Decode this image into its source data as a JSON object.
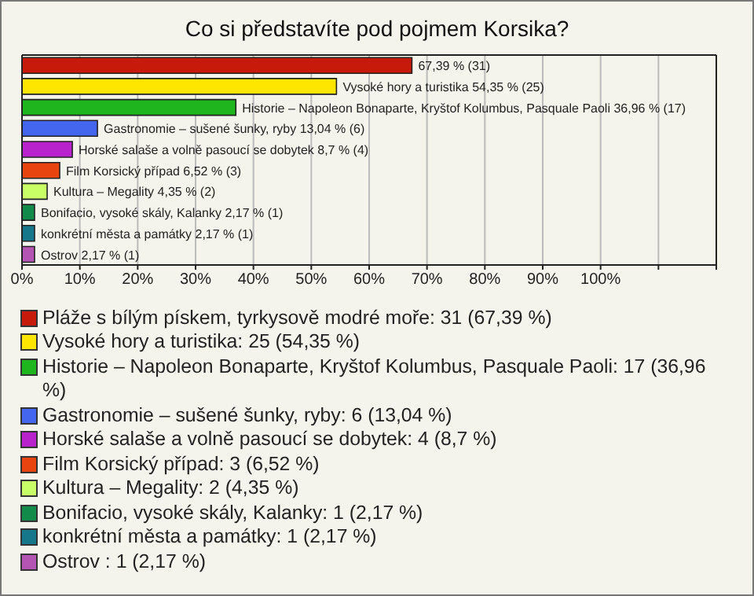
{
  "chart_data": {
    "type": "bar",
    "orientation": "horizontal",
    "stacked": true,
    "title": "Co si představíte pod pojmem Korsika?",
    "categories": [
      null,
      null,
      null,
      null,
      null,
      null,
      null,
      null,
      null,
      null
    ],
    "series": [
      {
        "name": "Pláže s bílým pískem, tyrkysově modré moře: 31 (67,39 %)",
        "color": "#c81a0a",
        "values": [
          67.39,
          null,
          null,
          null,
          null,
          null,
          null,
          null,
          null,
          null
        ],
        "value_labels": [
          "67,39 % (31)",
          null,
          null,
          null,
          null,
          null,
          null,
          null,
          null,
          null
        ]
      },
      {
        "name": "Vysoké hory a turistika: 25 (54,35 %)",
        "color": "#ffe600",
        "values": [
          null,
          54.35,
          null,
          null,
          null,
          null,
          null,
          null,
          null,
          null
        ],
        "value_labels": [
          null,
          "Vysoké hory a turistika 54,35 % (25)",
          null,
          null,
          null,
          null,
          null,
          null,
          null,
          null
        ]
      },
      {
        "name": "Historie – Napoleon Bonaparte, Kryštof Kolumbus, Pasquale Paoli: 17 (36,96 %)",
        "color": "#1fb51f",
        "values": [
          null,
          null,
          36.96,
          null,
          null,
          null,
          null,
          null,
          null,
          null
        ],
        "value_labels": [
          null,
          null,
          "Historie – Napoleon Bonaparte, Kryštof Kolumbus, Pasquale Paoli 36,96 % (17)",
          null,
          null,
          null,
          null,
          null,
          null,
          null
        ]
      },
      {
        "name": "Gastronomie – sušené šunky, ryby: 6 (13,04 %)",
        "color": "#4466ee",
        "values": [
          null,
          null,
          null,
          13.04,
          null,
          null,
          null,
          null,
          null,
          null
        ],
        "value_labels": [
          null,
          null,
          null,
          "Gastronomie – sušené šunky, ryby 13,04 % (6)",
          null,
          null,
          null,
          null,
          null,
          null
        ]
      },
      {
        "name": "Horské salaše a volně pasoucí se dobytek: 4 (8,7 %)",
        "color": "#b822cc",
        "values": [
          null,
          null,
          null,
          null,
          8.7,
          null,
          null,
          null,
          null,
          null
        ],
        "value_labels": [
          null,
          null,
          null,
          null,
          "Horské salaše a volně pasoucí se dobytek 8,7 % (4)",
          null,
          null,
          null,
          null,
          null
        ]
      },
      {
        "name": "Film Korsický případ: 3 (6,52 %)",
        "color": "#e8440f",
        "values": [
          null,
          null,
          null,
          null,
          null,
          6.52,
          null,
          null,
          null,
          null
        ],
        "value_labels": [
          null,
          null,
          null,
          null,
          null,
          "Film Korsický případ 6,52 % (3)",
          null,
          null,
          null,
          null
        ]
      },
      {
        "name": "Kultura – Megality: 2 (4,35 %)",
        "color": "#c8ff66",
        "values": [
          null,
          null,
          null,
          null,
          null,
          null,
          4.35,
          null,
          null,
          null
        ],
        "value_labels": [
          null,
          null,
          null,
          null,
          null,
          null,
          "Kultura – Megality 4,35 % (2)",
          null,
          null,
          null
        ]
      },
      {
        "name": "Bonifacio, vysoké skály, Kalanky: 1 (2,17 %)",
        "color": "#128a4a",
        "values": [
          null,
          null,
          null,
          null,
          null,
          null,
          null,
          2.17,
          null,
          null
        ],
        "value_labels": [
          null,
          null,
          null,
          null,
          null,
          null,
          null,
          "Bonifacio, vysoké skály, Kalanky 2,17 % (1)",
          null,
          null
        ]
      },
      {
        "name": "konkrétní města a památky: 1 (2,17 %)",
        "color": "#16778a",
        "values": [
          null,
          null,
          null,
          null,
          null,
          null,
          null,
          null,
          2.17,
          null
        ],
        "value_labels": [
          null,
          null,
          null,
          null,
          null,
          null,
          null,
          null,
          "konkrétní města a památky 2,17 % (1)",
          null
        ]
      },
      {
        "name": "Ostrov : 1 (2,17 %)",
        "color": "#b455b4",
        "values": [
          null,
          null,
          null,
          null,
          null,
          null,
          null,
          null,
          null,
          2.17
        ],
        "value_labels": [
          null,
          null,
          null,
          null,
          null,
          null,
          null,
          null,
          null,
          "Ostrov  2,17 % (1)"
        ]
      }
    ],
    "xlim": [
      0,
      120
    ],
    "xticks": [
      {
        "value": 0,
        "label": "0%"
      },
      {
        "value": 10,
        "label": "10%"
      },
      {
        "value": 20,
        "label": "20%"
      },
      {
        "value": 30,
        "label": "30%"
      },
      {
        "value": 40,
        "label": "40%"
      },
      {
        "value": 50,
        "label": "50%"
      },
      {
        "value": 60,
        "label": "60%"
      },
      {
        "value": 70,
        "label": "70%"
      },
      {
        "value": 80,
        "label": "80%"
      },
      {
        "value": 90,
        "label": "90%"
      },
      {
        "value": 100,
        "label": "100%"
      },
      {
        "value": 110,
        "label": null
      },
      {
        "value": 120,
        "label": null
      }
    ],
    "grid": "x",
    "legend": "bottom",
    "tick_labels": "x"
  }
}
